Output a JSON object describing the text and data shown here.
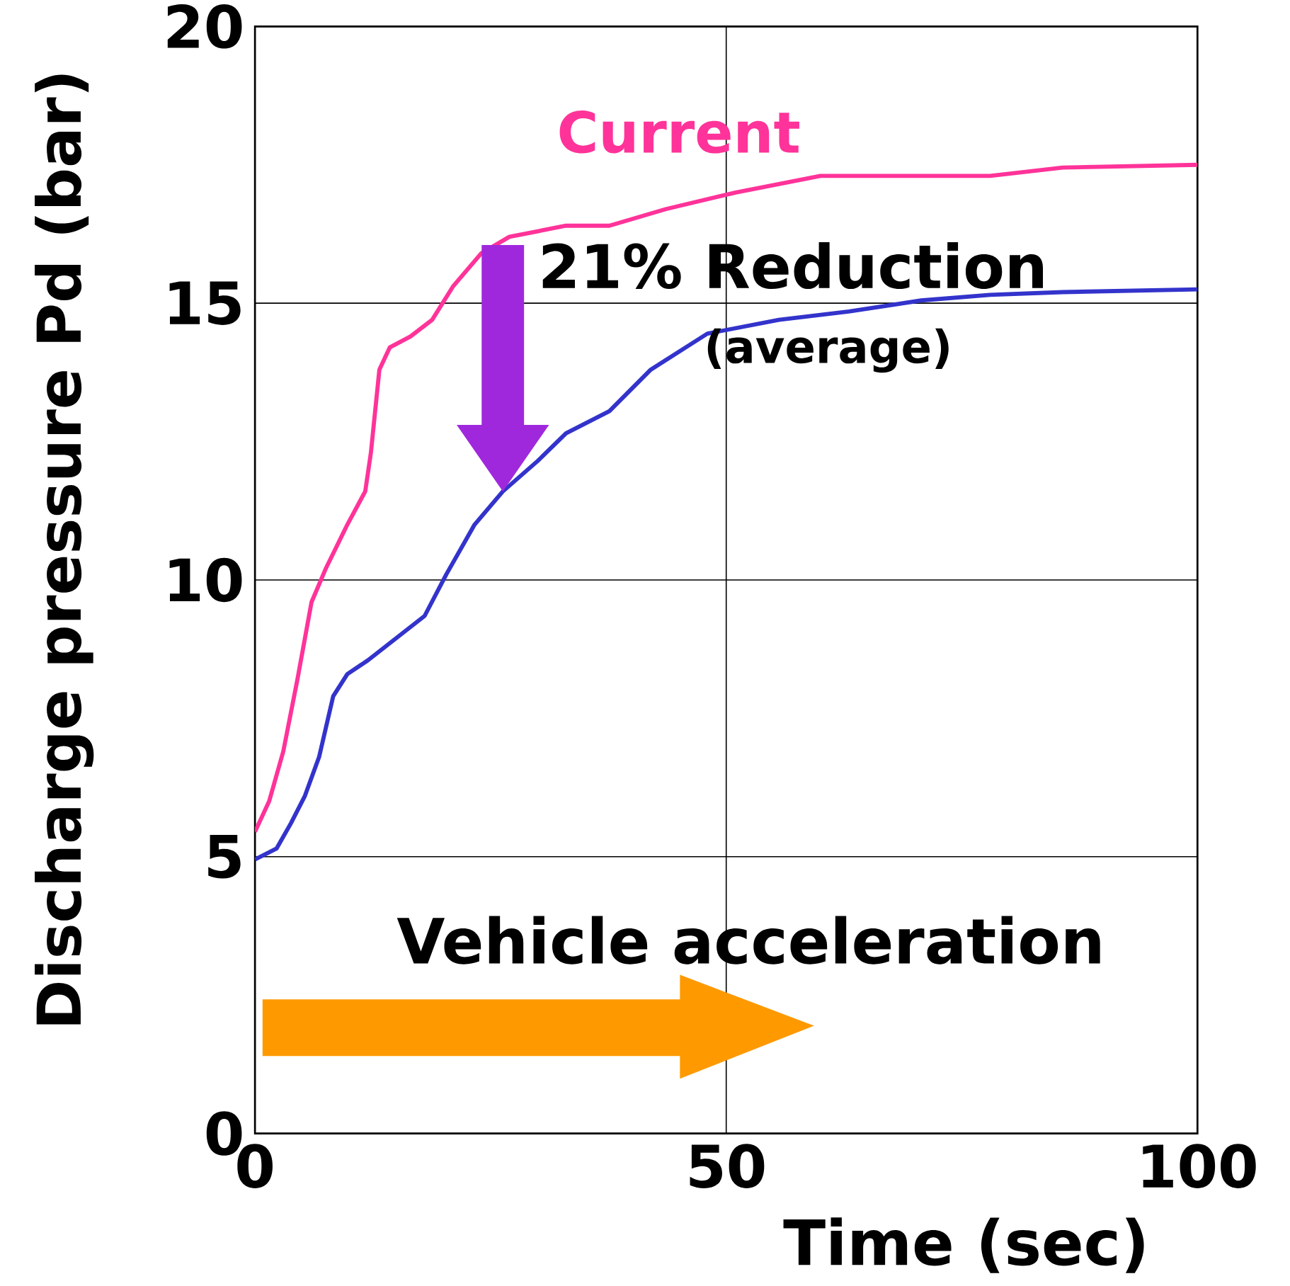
{
  "chart_data": {
    "type": "line",
    "xlabel": "Time   (sec)",
    "ylabel": "Discharge pressure  Pd  (bar)",
    "xlim": [
      0,
      100
    ],
    "ylim": [
      0,
      20
    ],
    "xticks": [
      0,
      50,
      100
    ],
    "yticks": [
      0,
      5,
      10,
      15,
      20
    ],
    "grid": true,
    "marker": "none",
    "line_style": "solid",
    "annotations": [
      {
        "text": "21% Reduction",
        "x": 27,
        "y": 16.2
      },
      "(average)",
      "Vehicle acceleration"
    ],
    "series": [
      {
        "name": "Current",
        "color": "#ff3399",
        "x": [
          0,
          1.5,
          3,
          4.5,
          6,
          7.5,
          9.8,
          11.7,
          12.3,
          13.2,
          14.3,
          16.5,
          18.8,
          21,
          24,
          27,
          33,
          37.6,
          43.6,
          51,
          60,
          70.7,
          78,
          85.7,
          100
        ],
        "values": [
          5.45,
          6.0,
          6.9,
          8.2,
          9.6,
          10.2,
          11.0,
          11.6,
          12.3,
          13.8,
          14.2,
          14.4,
          14.7,
          15.3,
          15.9,
          16.2,
          16.4,
          16.4,
          16.7,
          17.0,
          17.3,
          17.3,
          17.3,
          17.45,
          17.5
        ]
      },
      {
        "color": "#3333cc",
        "x": [
          0,
          2.3,
          3.8,
          5.3,
          6.8,
          8.3,
          9.8,
          12,
          15,
          18,
          20.3,
          23.3,
          26.3,
          30,
          33,
          37.6,
          42,
          48,
          55.6,
          63,
          70.7,
          78,
          85.7,
          100
        ],
        "values": [
          4.95,
          5.15,
          5.6,
          6.1,
          6.8,
          7.9,
          8.3,
          8.55,
          8.95,
          9.35,
          10.1,
          11.0,
          11.6,
          12.15,
          12.65,
          13.05,
          13.8,
          14.45,
          14.7,
          14.85,
          15.05,
          15.15,
          15.2,
          15.25
        ]
      }
    ]
  }
}
